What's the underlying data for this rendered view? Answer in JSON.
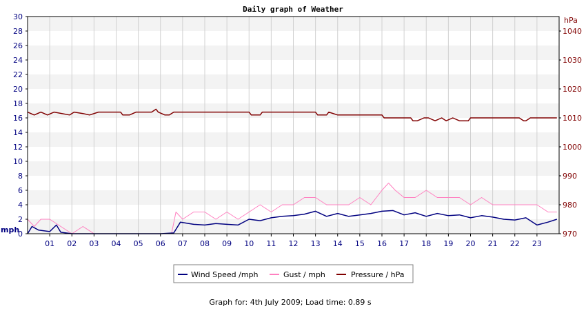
{
  "chart_data": {
    "type": "line",
    "title": "Daily graph of Weather",
    "x_ticks": [
      "01",
      "02",
      "03",
      "04",
      "05",
      "06",
      "07",
      "08",
      "09",
      "10",
      "11",
      "12",
      "13",
      "14",
      "15",
      "16",
      "17",
      "18",
      "19",
      "20",
      "21",
      "22",
      "23"
    ],
    "x_unit": "hour",
    "x_range": [
      0,
      24
    ],
    "left_axis": {
      "unit": "mph",
      "ticks": [
        0,
        2,
        4,
        6,
        8,
        10,
        12,
        14,
        16,
        18,
        20,
        22,
        24,
        26,
        28,
        30
      ],
      "range": [
        0,
        30
      ]
    },
    "right_axis": {
      "unit": "hPa",
      "ticks": [
        970,
        980,
        990,
        1000,
        1010,
        1020,
        1030,
        1040
      ],
      "range": [
        970,
        1045
      ]
    },
    "grid": true,
    "legend_position": "bottom",
    "series": [
      {
        "name": "Wind Speed /mph",
        "axis": "left",
        "color": "#000080",
        "x": [
          0,
          0.2,
          0.5,
          1.0,
          1.3,
          1.5,
          2,
          3,
          4,
          5,
          6,
          6.6,
          6.9,
          7.5,
          8,
          8.5,
          9,
          9.5,
          10,
          10.5,
          11,
          11.5,
          12,
          12.5,
          13,
          13.5,
          14,
          14.5,
          15,
          15.5,
          16,
          16.5,
          17,
          17.5,
          18,
          18.5,
          19,
          19.5,
          20,
          20.5,
          21,
          21.5,
          22,
          22.5,
          23,
          23.5,
          23.9
        ],
        "y": [
          0,
          1,
          0.5,
          0.3,
          1.2,
          0.2,
          0,
          0,
          0,
          0,
          0,
          0.1,
          1.6,
          1.3,
          1.2,
          1.4,
          1.3,
          1.2,
          2.0,
          1.8,
          2.2,
          2.4,
          2.5,
          2.7,
          3.1,
          2.4,
          2.8,
          2.4,
          2.6,
          2.8,
          3.1,
          3.2,
          2.6,
          2.9,
          2.4,
          2.8,
          2.5,
          2.6,
          2.2,
          2.5,
          2.3,
          2.0,
          1.9,
          2.2,
          1.2,
          1.6,
          2.0
        ]
      },
      {
        "name": "Gust / mph",
        "axis": "left",
        "color": "#ff80c0",
        "x": [
          0,
          0.3,
          0.6,
          1,
          1.5,
          2,
          2.5,
          3,
          4,
          5,
          6,
          6.5,
          6.7,
          7,
          7.5,
          8,
          8.5,
          9,
          9.5,
          10,
          10.5,
          11,
          11.5,
          12,
          12.5,
          13,
          13.5,
          14,
          14.5,
          15,
          15.5,
          16,
          16.3,
          16.6,
          17,
          17.5,
          18,
          18.5,
          19,
          19.5,
          20,
          20.5,
          21,
          21.5,
          22,
          22.5,
          23,
          23.5,
          23.9
        ],
        "y": [
          2,
          1,
          2,
          2,
          1,
          0,
          1,
          0,
          0,
          0,
          0,
          0,
          3,
          2,
          3,
          3,
          2,
          3,
          2,
          3,
          4,
          3,
          4,
          4,
          5,
          5,
          4,
          4,
          4,
          5,
          4,
          6,
          7,
          6,
          5,
          5,
          6,
          5,
          5,
          5,
          4,
          5,
          4,
          4,
          4,
          4,
          4,
          3,
          3
        ]
      },
      {
        "name": "Pressure / hPa",
        "axis": "right",
        "color": "#800000",
        "x": [
          0,
          0.3,
          0.6,
          0.9,
          1.2,
          1.9,
          2.1,
          2.5,
          2.8,
          3.2,
          3.5,
          4.2,
          4.3,
          4.6,
          4.9,
          5.3,
          5.6,
          5.8,
          5.9,
          6.2,
          6.4,
          6.6,
          7,
          8,
          9,
          10,
          10.1,
          10.5,
          10.6,
          11,
          12,
          13,
          13.1,
          13.5,
          13.6,
          14,
          14.5,
          15,
          15.5,
          16,
          16.1,
          16.5,
          17,
          17.3,
          17.4,
          17.6,
          17.9,
          18.1,
          18.4,
          18.7,
          18.9,
          19.2,
          19.5,
          19.9,
          20,
          20.5,
          21,
          21.5,
          22,
          22.2,
          22.4,
          22.5,
          22.7,
          23,
          23.5,
          23.9
        ],
        "y": [
          1012,
          1011,
          1012,
          1011,
          1012,
          1011,
          1012,
          1011.5,
          1011,
          1012,
          1012,
          1012,
          1011,
          1011,
          1012,
          1012,
          1012,
          1013,
          1012,
          1011,
          1011,
          1012,
          1012,
          1012,
          1012,
          1012,
          1011,
          1011,
          1012,
          1012,
          1012,
          1012,
          1011,
          1011,
          1012,
          1011,
          1011,
          1011,
          1011,
          1011,
          1010,
          1010,
          1010,
          1010,
          1009,
          1009,
          1010,
          1010,
          1009,
          1010,
          1009,
          1010,
          1009,
          1009,
          1010,
          1010,
          1010,
          1010,
          1010,
          1010,
          1009,
          1009,
          1010,
          1010,
          1010,
          1010
        ]
      }
    ]
  },
  "footer_text": "Graph for: 4th July 2009; Load time: 0.89 s"
}
